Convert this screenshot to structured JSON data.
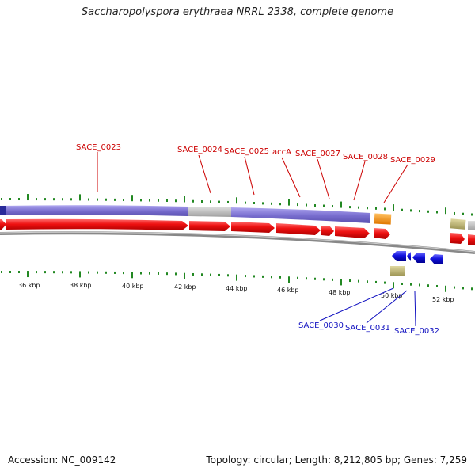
{
  "title": "Saccharopolyspora erythraea NRRL 2338, complete genome",
  "footer": {
    "accession": "Accession: NC_009142",
    "topology": "Topology: circular; Length: 8,212,805 bp; Genes: 7,259"
  },
  "colors": {
    "forward_cds": "#ee1111",
    "reverse_cds": "#1111dd",
    "forward_label": "#cc0000",
    "reverse_label": "#1010c0",
    "gene_band": "#7a6fd0",
    "gene_band_dark": "#2a2a9a",
    "gap_band": "#bbbbbb",
    "other_feature": "#c8c080",
    "orange_feature": "#f09020",
    "tick": "#228822",
    "backbone": "#888888"
  },
  "scale_labels": [
    "36 kbp",
    "38 kbp",
    "40 kbp",
    "42 kbp",
    "44 kbp",
    "46 kbp",
    "48 kbp",
    "50 kbp",
    "52 kbp"
  ],
  "forward_genes": [
    {
      "label": "SACE_0023"
    },
    {
      "label": "SACE_0024"
    },
    {
      "label": "SACE_0025"
    },
    {
      "label": "accA"
    },
    {
      "label": "SACE_0027"
    },
    {
      "label": "SACE_0028"
    },
    {
      "label": "SACE_0029"
    }
  ],
  "reverse_genes": [
    {
      "label": "SACE_0030"
    },
    {
      "label": "SACE_0031"
    },
    {
      "label": "SACE_0032"
    }
  ]
}
